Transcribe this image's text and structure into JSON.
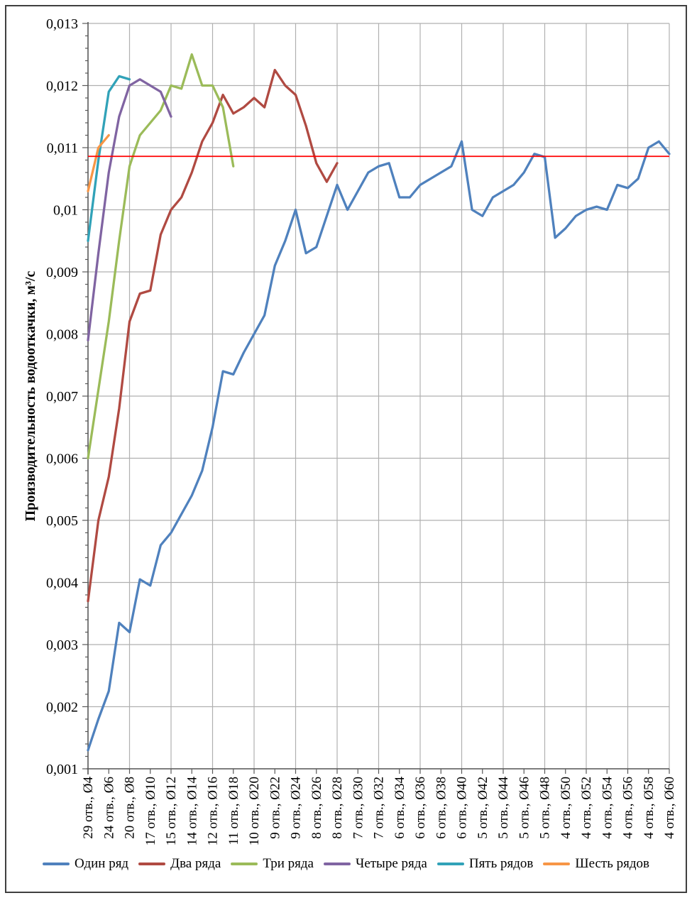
{
  "chart_data": {
    "type": "line",
    "title": "",
    "xlabel": "",
    "ylabel": "Производительность водооткачки, м³/с",
    "ylim": [
      0.001,
      0.013
    ],
    "ytick_step": 0.001,
    "ytick_labels": [
      "0,001",
      "0,002",
      "0,003",
      "0,004",
      "0,005",
      "0,006",
      "0,007",
      "0,008",
      "0,009",
      "0,01",
      "0,011",
      "0,012",
      "0,013"
    ],
    "y_minor_tick_step": 0.0002,
    "x_unit_range": [
      4,
      60
    ],
    "x_points_per_series_step": 1,
    "categories": [
      "29 отв., Ø4",
      "24 отв., Ø6",
      "20 отв., Ø8",
      "17 отв., Ø10",
      "15 отв., Ø12",
      "14 отв., Ø14",
      "12 отв., Ø16",
      "11 отв., Ø18",
      "10 отв., Ø20",
      "9 отв., Ø22",
      "9 отв., Ø24",
      "8 отв., Ø26",
      "8 отв., Ø28",
      "7 отв., Ø30",
      "7 отв., Ø32",
      "6 отв., Ø34",
      "6 отв., Ø36",
      "6 отв., Ø38",
      "6 отв., Ø40",
      "5 отв., Ø42",
      "5 отв., Ø44",
      "5 отв., Ø46",
      "5 отв., Ø48",
      "4 отв., Ø50",
      "4 отв., Ø52",
      "4 отв., Ø54",
      "4 отв., Ø56",
      "4 отв., Ø58",
      "4 отв., Ø60"
    ],
    "grid": {
      "horizontal": true,
      "vertical": true,
      "color": "#b0b0b0",
      "vertical_every_diameters": 4,
      "vertical_start_diameter": 8
    },
    "axis_color": "#595959",
    "legend_position": "bottom",
    "ref_line": {
      "value": 0.01086,
      "color": "#ff0000"
    },
    "series": [
      {
        "name": "Один ряд",
        "color": "#4F81BD",
        "start_diameter": 4,
        "values": [
          0.0013,
          0.0018,
          0.00225,
          0.00335,
          0.0032,
          0.00405,
          0.00395,
          0.0046,
          0.0048,
          0.0051,
          0.0054,
          0.0058,
          0.0065,
          0.0074,
          0.00735,
          0.0077,
          0.008,
          0.0083,
          0.0091,
          0.0095,
          0.01,
          0.0093,
          0.0094,
          0.0099,
          0.0104,
          0.01,
          0.0103,
          0.0106,
          0.0107,
          0.01075,
          0.0102,
          0.0102,
          0.0104,
          0.0105,
          0.0106,
          0.0107,
          0.0111,
          0.01,
          0.0099,
          0.0102,
          0.0103,
          0.0104,
          0.0106,
          0.0109,
          0.01085,
          0.00955,
          0.0097,
          0.0099,
          0.01,
          0.01005,
          0.01,
          0.0104,
          0.01035,
          0.0105,
          0.011,
          0.0111,
          0.0109
        ]
      },
      {
        "name": "Два ряда",
        "color": "#B04A42",
        "start_diameter": 4,
        "values": [
          0.0037,
          0.005,
          0.0057,
          0.0068,
          0.0082,
          0.00865,
          0.0087,
          0.0096,
          0.01,
          0.0102,
          0.0106,
          0.0111,
          0.0114,
          0.01185,
          0.01155,
          0.01165,
          0.0118,
          0.01165,
          0.01225,
          0.012,
          0.01185,
          0.01135,
          0.01075,
          0.01045,
          0.01075
        ]
      },
      {
        "name": "Три ряда",
        "color": "#9BBB59",
        "start_diameter": 4,
        "values": [
          0.006,
          0.0071,
          0.0082,
          0.0095,
          0.0107,
          0.0112,
          0.0114,
          0.0116,
          0.012,
          0.01195,
          0.0125,
          0.012,
          0.012,
          0.01165,
          0.0107
        ]
      },
      {
        "name": "Четыре ряда",
        "color": "#8064A2",
        "start_diameter": 4,
        "values": [
          0.0079,
          0.0093,
          0.0106,
          0.0115,
          0.012,
          0.0121,
          0.012,
          0.0119,
          0.0115
        ]
      },
      {
        "name": "Пять рядов",
        "color": "#31A2B8",
        "start_diameter": 4,
        "values": [
          0.0095,
          0.0108,
          0.0119,
          0.01215,
          0.0121
        ]
      },
      {
        "name": "Шесть рядов",
        "color": "#F79646",
        "start_diameter": 4,
        "values": [
          0.0103,
          0.011,
          0.0112
        ]
      }
    ]
  },
  "page": {
    "background": "#ffffff",
    "border_color": "#3f3f3f"
  }
}
